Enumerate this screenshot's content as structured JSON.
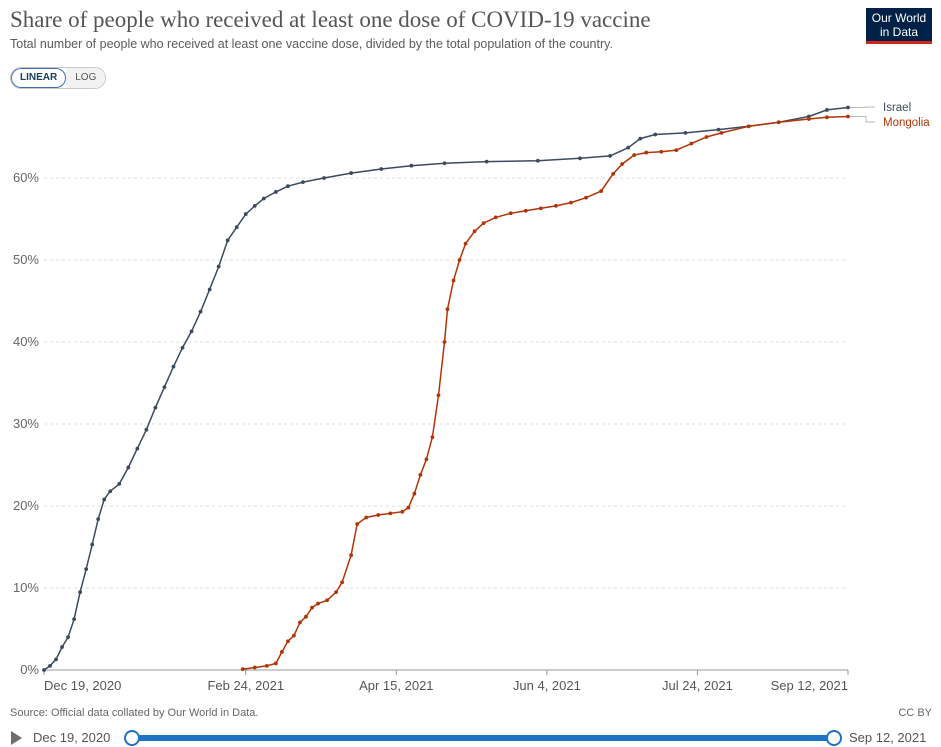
{
  "header": {
    "title": "Share of people who received at least one dose of COVID-19 vaccine",
    "subtitle": "Total number of people who received at least one vaccine dose, divided by the total population of the country."
  },
  "logo": {
    "line1": "Our World",
    "line2": "in Data"
  },
  "scale_toggle": {
    "linear_label": "LINEAR",
    "log_label": "LOG",
    "active": "linear"
  },
  "footer": {
    "source": "Source: Official data collated by Our World in Data.",
    "license": "CC BY"
  },
  "timeline": {
    "start_label": "Dec 19, 2020",
    "end_label": "Sep 12, 2021"
  },
  "colors": {
    "israel": "#3c4a5f",
    "mongolia": "#b13507",
    "grid": "#dddddd",
    "accent": "#1f73c4"
  },
  "chart_data": {
    "type": "line",
    "title": "Share of people who received at least one dose of COVID-19 vaccine",
    "subtitle": "Total number of people who received at least one vaccine dose, divided by the total population of the country.",
    "x_type": "date",
    "xlim": [
      "2020-12-19",
      "2021-09-12"
    ],
    "x_ticks": [
      "2020-12-19",
      "2021-02-24",
      "2021-04-15",
      "2021-06-04",
      "2021-07-24",
      "2021-09-12"
    ],
    "x_tick_labels": [
      "Dec 19, 2020",
      "Feb 24, 2021",
      "Apr 15, 2021",
      "Jun 4, 2021",
      "Jul 24, 2021",
      "Sep 12, 2021"
    ],
    "ylim": [
      0,
      70
    ],
    "y_ticks": [
      0,
      10,
      20,
      30,
      40,
      50,
      60
    ],
    "y_tick_labels": [
      "0%",
      "10%",
      "20%",
      "30%",
      "40%",
      "50%",
      "60%"
    ],
    "grid": true,
    "legend": "right-end labels",
    "series": [
      {
        "name": "Israel",
        "color": "#3c4a5f",
        "points": [
          [
            "2020-12-19",
            0.0
          ],
          [
            "2020-12-21",
            0.5
          ],
          [
            "2020-12-23",
            1.3
          ],
          [
            "2020-12-25",
            2.8
          ],
          [
            "2020-12-27",
            4.0
          ],
          [
            "2020-12-29",
            6.2
          ],
          [
            "2020-12-31",
            9.5
          ],
          [
            "2021-01-02",
            12.3
          ],
          [
            "2021-01-04",
            15.3
          ],
          [
            "2021-01-06",
            18.4
          ],
          [
            "2021-01-08",
            20.8
          ],
          [
            "2021-01-10",
            21.8
          ],
          [
            "2021-01-13",
            22.7
          ],
          [
            "2021-01-16",
            24.7
          ],
          [
            "2021-01-19",
            27.0
          ],
          [
            "2021-01-22",
            29.3
          ],
          [
            "2021-01-25",
            32.0
          ],
          [
            "2021-01-28",
            34.5
          ],
          [
            "2021-01-31",
            37.0
          ],
          [
            "2021-02-03",
            39.3
          ],
          [
            "2021-02-06",
            41.3
          ],
          [
            "2021-02-09",
            43.7
          ],
          [
            "2021-02-12",
            46.4
          ],
          [
            "2021-02-15",
            49.2
          ],
          [
            "2021-02-18",
            52.4
          ],
          [
            "2021-02-21",
            54.0
          ],
          [
            "2021-02-24",
            55.6
          ],
          [
            "2021-02-27",
            56.6
          ],
          [
            "2021-03-02",
            57.5
          ],
          [
            "2021-03-06",
            58.3
          ],
          [
            "2021-03-10",
            59.0
          ],
          [
            "2021-03-15",
            59.5
          ],
          [
            "2021-03-22",
            60.0
          ],
          [
            "2021-03-31",
            60.6
          ],
          [
            "2021-04-10",
            61.1
          ],
          [
            "2021-04-20",
            61.5
          ],
          [
            "2021-05-01",
            61.8
          ],
          [
            "2021-05-15",
            62.0
          ],
          [
            "2021-06-01",
            62.1
          ],
          [
            "2021-06-15",
            62.4
          ],
          [
            "2021-06-25",
            62.7
          ],
          [
            "2021-07-01",
            63.7
          ],
          [
            "2021-07-05",
            64.8
          ],
          [
            "2021-07-10",
            65.3
          ],
          [
            "2021-07-20",
            65.5
          ],
          [
            "2021-07-31",
            65.9
          ],
          [
            "2021-08-10",
            66.3
          ],
          [
            "2021-08-20",
            66.8
          ],
          [
            "2021-08-30",
            67.5
          ],
          [
            "2021-09-05",
            68.3
          ],
          [
            "2021-09-12",
            68.6
          ]
        ]
      },
      {
        "name": "Mongolia",
        "color": "#b13507",
        "points": [
          [
            "2021-02-23",
            0.1
          ],
          [
            "2021-02-27",
            0.3
          ],
          [
            "2021-03-03",
            0.5
          ],
          [
            "2021-03-06",
            0.8
          ],
          [
            "2021-03-08",
            2.2
          ],
          [
            "2021-03-10",
            3.5
          ],
          [
            "2021-03-12",
            4.2
          ],
          [
            "2021-03-14",
            5.8
          ],
          [
            "2021-03-16",
            6.5
          ],
          [
            "2021-03-18",
            7.6
          ],
          [
            "2021-03-20",
            8.1
          ],
          [
            "2021-03-23",
            8.5
          ],
          [
            "2021-03-26",
            9.5
          ],
          [
            "2021-03-28",
            10.7
          ],
          [
            "2021-03-31",
            14.0
          ],
          [
            "2021-04-02",
            17.8
          ],
          [
            "2021-04-05",
            18.6
          ],
          [
            "2021-04-09",
            18.9
          ],
          [
            "2021-04-13",
            19.1
          ],
          [
            "2021-04-17",
            19.3
          ],
          [
            "2021-04-19",
            19.8
          ],
          [
            "2021-04-21",
            21.5
          ],
          [
            "2021-04-23",
            23.8
          ],
          [
            "2021-04-25",
            25.7
          ],
          [
            "2021-04-27",
            28.4
          ],
          [
            "2021-04-29",
            33.5
          ],
          [
            "2021-05-01",
            40.0
          ],
          [
            "2021-05-02",
            44.0
          ],
          [
            "2021-05-04",
            47.5
          ],
          [
            "2021-05-06",
            50.0
          ],
          [
            "2021-05-08",
            52.0
          ],
          [
            "2021-05-11",
            53.5
          ],
          [
            "2021-05-14",
            54.5
          ],
          [
            "2021-05-18",
            55.2
          ],
          [
            "2021-05-23",
            55.7
          ],
          [
            "2021-05-28",
            56.0
          ],
          [
            "2021-06-02",
            56.3
          ],
          [
            "2021-06-07",
            56.6
          ],
          [
            "2021-06-12",
            57.0
          ],
          [
            "2021-06-17",
            57.6
          ],
          [
            "2021-06-22",
            58.4
          ],
          [
            "2021-06-26",
            60.5
          ],
          [
            "2021-06-29",
            61.7
          ],
          [
            "2021-07-03",
            62.8
          ],
          [
            "2021-07-07",
            63.1
          ],
          [
            "2021-07-12",
            63.2
          ],
          [
            "2021-07-17",
            63.4
          ],
          [
            "2021-07-22",
            64.2
          ],
          [
            "2021-07-27",
            65.0
          ],
          [
            "2021-08-01",
            65.5
          ],
          [
            "2021-08-10",
            66.3
          ],
          [
            "2021-08-20",
            66.8
          ],
          [
            "2021-08-30",
            67.2
          ],
          [
            "2021-09-05",
            67.4
          ],
          [
            "2021-09-12",
            67.5
          ]
        ]
      }
    ]
  }
}
